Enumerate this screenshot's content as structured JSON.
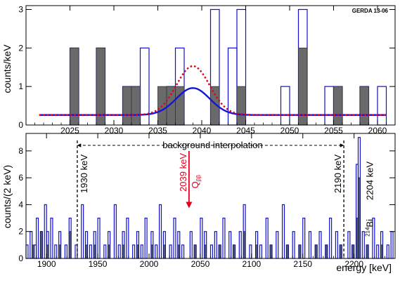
{
  "chart_data": [
    {
      "type": "bar",
      "panel": "top",
      "tag": "GERDA 13-06",
      "ylabel": "counts/keV",
      "xlim": [
        2020,
        2062
      ],
      "ylim": [
        0,
        3.1
      ],
      "x_ticks": [
        2025,
        2030,
        2035,
        2040,
        2045,
        2050,
        2055,
        2060
      ],
      "y_ticks": [
        0,
        1,
        2,
        3
      ],
      "bin_width": 1,
      "series": [
        {
          "style": "open-blue",
          "bins": [
            {
              "x": 2025,
              "y": 2
            },
            {
              "x": 2028,
              "y": 2
            },
            {
              "x": 2031,
              "y": 1
            },
            {
              "x": 2032,
              "y": 1
            },
            {
              "x": 2033,
              "y": 2
            },
            {
              "x": 2036,
              "y": 1
            },
            {
              "x": 2037,
              "y": 2
            },
            {
              "x": 2041,
              "y": 3
            },
            {
              "x": 2043,
              "y": 2
            },
            {
              "x": 2044,
              "y": 3
            },
            {
              "x": 2049,
              "y": 1
            },
            {
              "x": 2051,
              "y": 3
            },
            {
              "x": 2054,
              "y": 1
            },
            {
              "x": 2055,
              "y": 1
            },
            {
              "x": 2058,
              "y": 1
            },
            {
              "x": 2060,
              "y": 1
            }
          ]
        },
        {
          "style": "filled-gray",
          "bins": [
            {
              "x": 2025,
              "y": 2
            },
            {
              "x": 2028,
              "y": 2
            },
            {
              "x": 2031,
              "y": 1
            },
            {
              "x": 2032,
              "y": 1
            },
            {
              "x": 2035,
              "y": 1
            },
            {
              "x": 2036,
              "y": 1
            },
            {
              "x": 2037,
              "y": 1
            },
            {
              "x": 2041,
              "y": 1
            },
            {
              "x": 2044,
              "y": 1
            },
            {
              "x": 2051,
              "y": 2
            },
            {
              "x": 2055,
              "y": 1
            },
            {
              "x": 2058,
              "y": 1
            }
          ]
        }
      ],
      "curves": [
        {
          "style": "solid-blue",
          "baseline": 0.26,
          "peak_x": 2039,
          "amplitude": 0.7,
          "sigma": 1.9
        },
        {
          "style": "dotted-red",
          "baseline": 0.26,
          "peak_x": 2039,
          "amplitude": 1.27,
          "sigma": 1.9
        }
      ]
    },
    {
      "type": "bar",
      "panel": "bottom",
      "ylabel": "counts/(2 keV)",
      "xlabel": "energy  [keV]",
      "xlim": [
        1880,
        2240
      ],
      "ylim": [
        0,
        9.3
      ],
      "x_ticks": [
        1900,
        1950,
        2000,
        2050,
        2100,
        2150,
        2200
      ],
      "y_ticks": [
        0,
        2,
        4,
        6,
        8
      ],
      "bin_width": 2,
      "annotations": {
        "interpolation": "background interpolation",
        "low": "1930 keV",
        "high": "2190 keV",
        "qbb_value": "2039 keV",
        "qbb_symbol": "Q",
        "qbb_sub": "ββ",
        "bi_line": "2204 keV",
        "bi_mass": "214",
        "bi_elem": "Bi"
      },
      "series": [
        {
          "style": "open-blue",
          "bins": [
            {
              "x": 1880,
              "y": 1
            },
            {
              "x": 1884,
              "y": 2
            },
            {
              "x": 1888,
              "y": 1
            },
            {
              "x": 1890,
              "y": 3
            },
            {
              "x": 1894,
              "y": 2
            },
            {
              "x": 1898,
              "y": 4
            },
            {
              "x": 1900,
              "y": 2
            },
            {
              "x": 1904,
              "y": 3
            },
            {
              "x": 1908,
              "y": 1
            },
            {
              "x": 1912,
              "y": 2
            },
            {
              "x": 1918,
              "y": 1
            },
            {
              "x": 1922,
              "y": 3
            },
            {
              "x": 1928,
              "y": 1
            },
            {
              "x": 1934,
              "y": 4
            },
            {
              "x": 1938,
              "y": 2
            },
            {
              "x": 1942,
              "y": 1
            },
            {
              "x": 1946,
              "y": 2
            },
            {
              "x": 1950,
              "y": 3
            },
            {
              "x": 1956,
              "y": 1
            },
            {
              "x": 1960,
              "y": 2
            },
            {
              "x": 1966,
              "y": 4
            },
            {
              "x": 1970,
              "y": 1
            },
            {
              "x": 1974,
              "y": 2
            },
            {
              "x": 1978,
              "y": 3
            },
            {
              "x": 1984,
              "y": 1
            },
            {
              "x": 1988,
              "y": 2
            },
            {
              "x": 1992,
              "y": 1
            },
            {
              "x": 1996,
              "y": 3
            },
            {
              "x": 2002,
              "y": 2
            },
            {
              "x": 2006,
              "y": 1
            },
            {
              "x": 2010,
              "y": 4
            },
            {
              "x": 2014,
              "y": 2
            },
            {
              "x": 2020,
              "y": 1
            },
            {
              "x": 2024,
              "y": 3
            },
            {
              "x": 2028,
              "y": 2
            },
            {
              "x": 2032,
              "y": 1
            },
            {
              "x": 2040,
              "y": 2
            },
            {
              "x": 2044,
              "y": 1
            },
            {
              "x": 2050,
              "y": 3
            },
            {
              "x": 2054,
              "y": 2
            },
            {
              "x": 2060,
              "y": 1
            },
            {
              "x": 2064,
              "y": 2
            },
            {
              "x": 2068,
              "y": 1
            },
            {
              "x": 2072,
              "y": 3
            },
            {
              "x": 2078,
              "y": 2
            },
            {
              "x": 2082,
              "y": 1
            },
            {
              "x": 2088,
              "y": 2
            },
            {
              "x": 2092,
              "y": 4
            },
            {
              "x": 2098,
              "y": 1
            },
            {
              "x": 2104,
              "y": 2
            },
            {
              "x": 2108,
              "y": 1
            },
            {
              "x": 2114,
              "y": 3
            },
            {
              "x": 2118,
              "y": 1
            },
            {
              "x": 2124,
              "y": 2
            },
            {
              "x": 2130,
              "y": 4
            },
            {
              "x": 2134,
              "y": 1
            },
            {
              "x": 2140,
              "y": 2
            },
            {
              "x": 2146,
              "y": 1
            },
            {
              "x": 2150,
              "y": 3
            },
            {
              "x": 2156,
              "y": 2
            },
            {
              "x": 2162,
              "y": 1
            },
            {
              "x": 2166,
              "y": 2
            },
            {
              "x": 2172,
              "y": 1
            },
            {
              "x": 2176,
              "y": 3
            },
            {
              "x": 2182,
              "y": 2
            },
            {
              "x": 2186,
              "y": 1
            },
            {
              "x": 2194,
              "y": 2
            },
            {
              "x": 2198,
              "y": 1
            },
            {
              "x": 2202,
              "y": 7
            },
            {
              "x": 2204,
              "y": 9
            },
            {
              "x": 2208,
              "y": 2
            },
            {
              "x": 2212,
              "y": 1
            },
            {
              "x": 2218,
              "y": 3
            },
            {
              "x": 2222,
              "y": 1
            },
            {
              "x": 2226,
              "y": 2
            },
            {
              "x": 2232,
              "y": 1
            },
            {
              "x": 2236,
              "y": 2
            }
          ]
        },
        {
          "style": "filled-navy",
          "bins": [
            {
              "x": 1886,
              "y": 1
            },
            {
              "x": 1894,
              "y": 2
            },
            {
              "x": 1900,
              "y": 1
            },
            {
              "x": 1912,
              "y": 1
            },
            {
              "x": 1922,
              "y": 2
            },
            {
              "x": 1938,
              "y": 1
            },
            {
              "x": 1946,
              "y": 1
            },
            {
              "x": 1960,
              "y": 1
            },
            {
              "x": 1974,
              "y": 1
            },
            {
              "x": 1988,
              "y": 1
            },
            {
              "x": 2002,
              "y": 1
            },
            {
              "x": 2014,
              "y": 1
            },
            {
              "x": 2028,
              "y": 1
            },
            {
              "x": 2044,
              "y": 1
            },
            {
              "x": 2054,
              "y": 1
            },
            {
              "x": 2068,
              "y": 1
            },
            {
              "x": 2082,
              "y": 1
            },
            {
              "x": 2092,
              "y": 2
            },
            {
              "x": 2104,
              "y": 1
            },
            {
              "x": 2118,
              "y": 1
            },
            {
              "x": 2134,
              "y": 1
            },
            {
              "x": 2146,
              "y": 1
            },
            {
              "x": 2162,
              "y": 1
            },
            {
              "x": 2172,
              "y": 1
            },
            {
              "x": 2186,
              "y": 1
            },
            {
              "x": 2198,
              "y": 1
            },
            {
              "x": 2202,
              "y": 3
            },
            {
              "x": 2204,
              "y": 6
            },
            {
              "x": 2212,
              "y": 1
            },
            {
              "x": 2226,
              "y": 1
            }
          ]
        }
      ]
    }
  ]
}
